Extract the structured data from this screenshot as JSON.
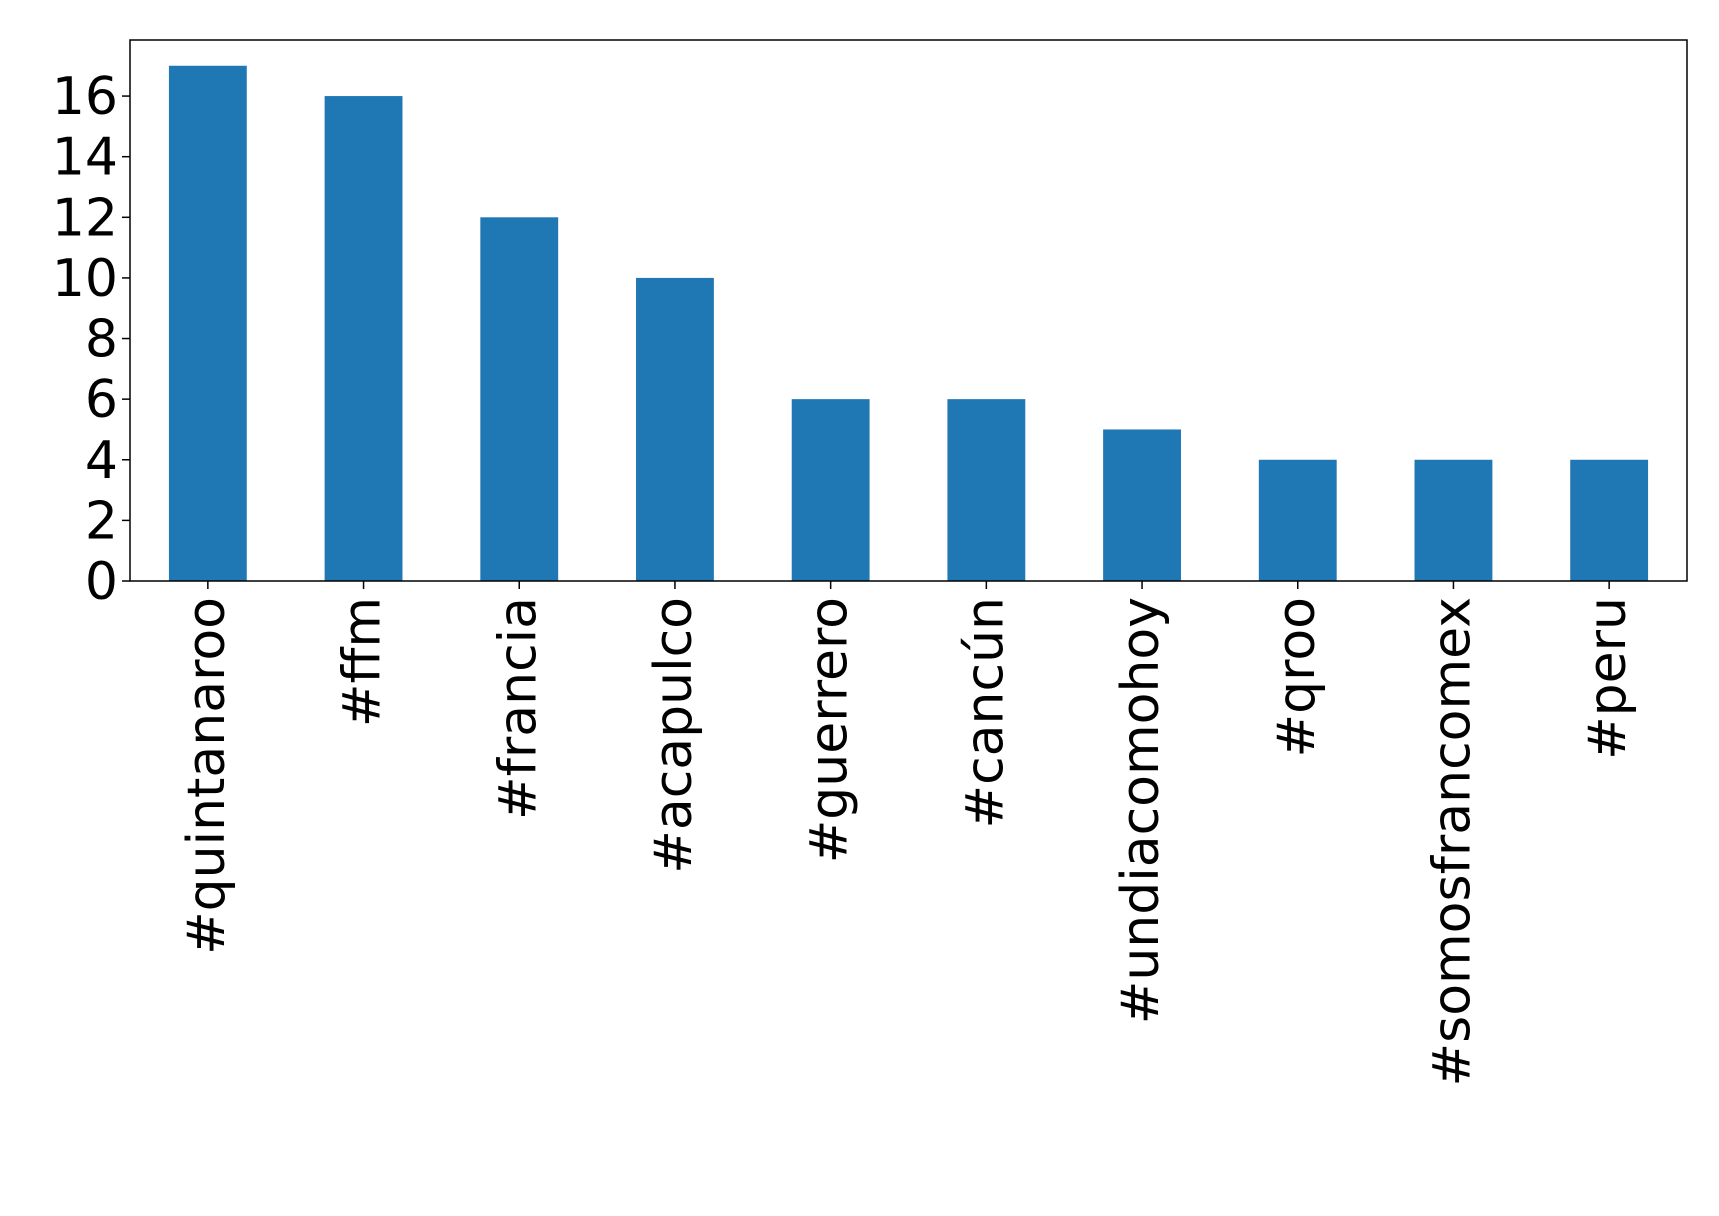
{
  "chart_data": {
    "type": "bar",
    "categories": [
      "#quintanaroo",
      "#ffm",
      "#francia",
      "#acapulco",
      "#guerrero",
      "#cancún",
      "#undiacomohoy",
      "#qroo",
      "#somosfrancomex",
      "#peru"
    ],
    "values": [
      17,
      16,
      12,
      10,
      6,
      6,
      5,
      4,
      4,
      4
    ],
    "color": "#1f77b4",
    "ylim": [
      0,
      17.85
    ],
    "yticks": [
      0,
      2,
      4,
      6,
      8,
      10,
      12,
      14,
      16
    ],
    "grid": false
  }
}
